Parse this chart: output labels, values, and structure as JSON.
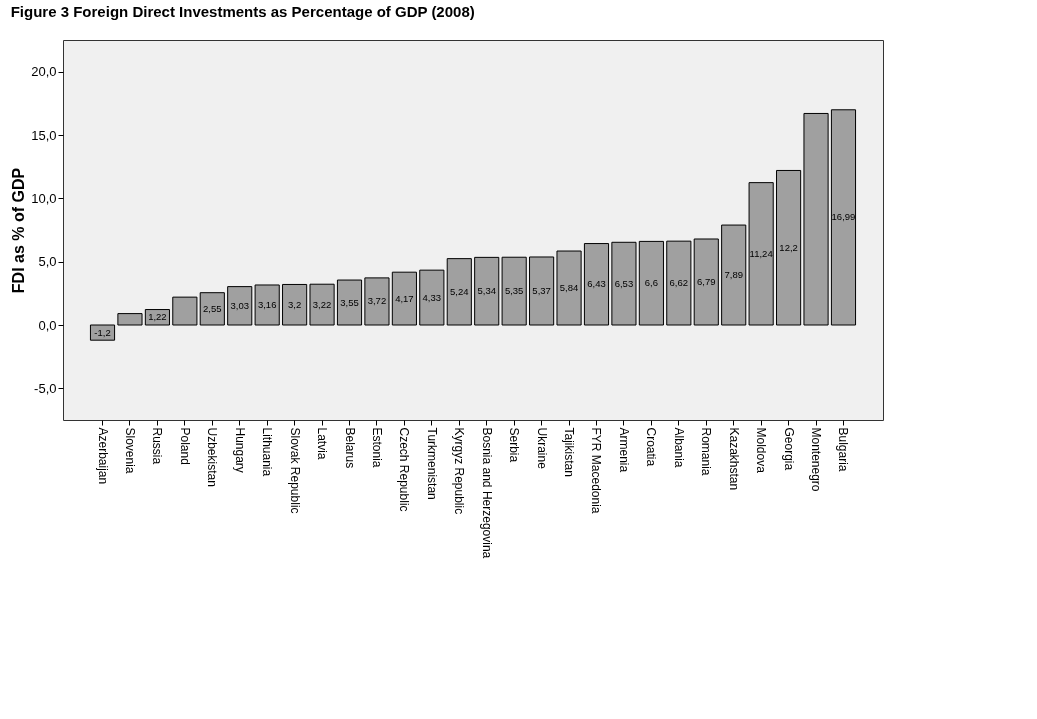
{
  "chart_data": {
    "type": "bar",
    "title": "Figure 3 Foreign Direct Investments as Percentage of GDP (2008)",
    "ylabel": "FDI as % of GDP",
    "categories": [
      "Azerbaijan",
      "Slovenia",
      "Russia",
      "Poland",
      "Uzbekistan",
      "Hungary",
      "Lithuania",
      "Slovak Republic",
      "Latvia",
      "Belarus",
      "Estonia",
      "Czech Republic",
      "Turkmenistan",
      "Kyrgyz Republic",
      "Bosnia and Herzegovina",
      "Serbia",
      "Ukraine",
      "Tajikistan",
      "FYR Macedonia",
      "Armenia",
      "Croatia",
      "Albania",
      "Romania",
      "Kazakhstan",
      "Moldova",
      "Georgia",
      "Montenegro",
      "Bulgaria"
    ],
    "values": [
      -1.2,
      0.9,
      1.22,
      2.2,
      2.55,
      3.03,
      3.16,
      3.2,
      3.22,
      3.55,
      3.72,
      4.17,
      4.33,
      5.24,
      5.34,
      5.35,
      5.37,
      5.84,
      6.43,
      6.53,
      6.6,
      6.62,
      6.79,
      7.89,
      11.24,
      12.2,
      16.7,
      16.99
    ],
    "value_labels": [
      "-1,2",
      null,
      "1,22",
      null,
      "2,55",
      "3,03",
      "3,16",
      "3,2",
      "3,22",
      "3,55",
      "3,72",
      "4,17",
      "4,33",
      "5,24",
      "5,34",
      "5,35",
      "5,37",
      "5,84",
      "6,43",
      "6,53",
      "6,6",
      "6,62",
      "6,79",
      "7,89",
      "11,24",
      "12,2",
      null,
      "16,99"
    ],
    "color": "#a0a0a0",
    "ylim": [
      -7.5,
      22.5
    ],
    "yticks": [
      {
        "value": -5,
        "label": "-5,0"
      },
      {
        "value": 0,
        "label": "0,0"
      },
      {
        "value": 5,
        "label": "5,0"
      },
      {
        "value": 10,
        "label": "10,0"
      },
      {
        "value": 15,
        "label": "15,0"
      },
      {
        "value": 20,
        "label": "20,0"
      }
    ]
  }
}
